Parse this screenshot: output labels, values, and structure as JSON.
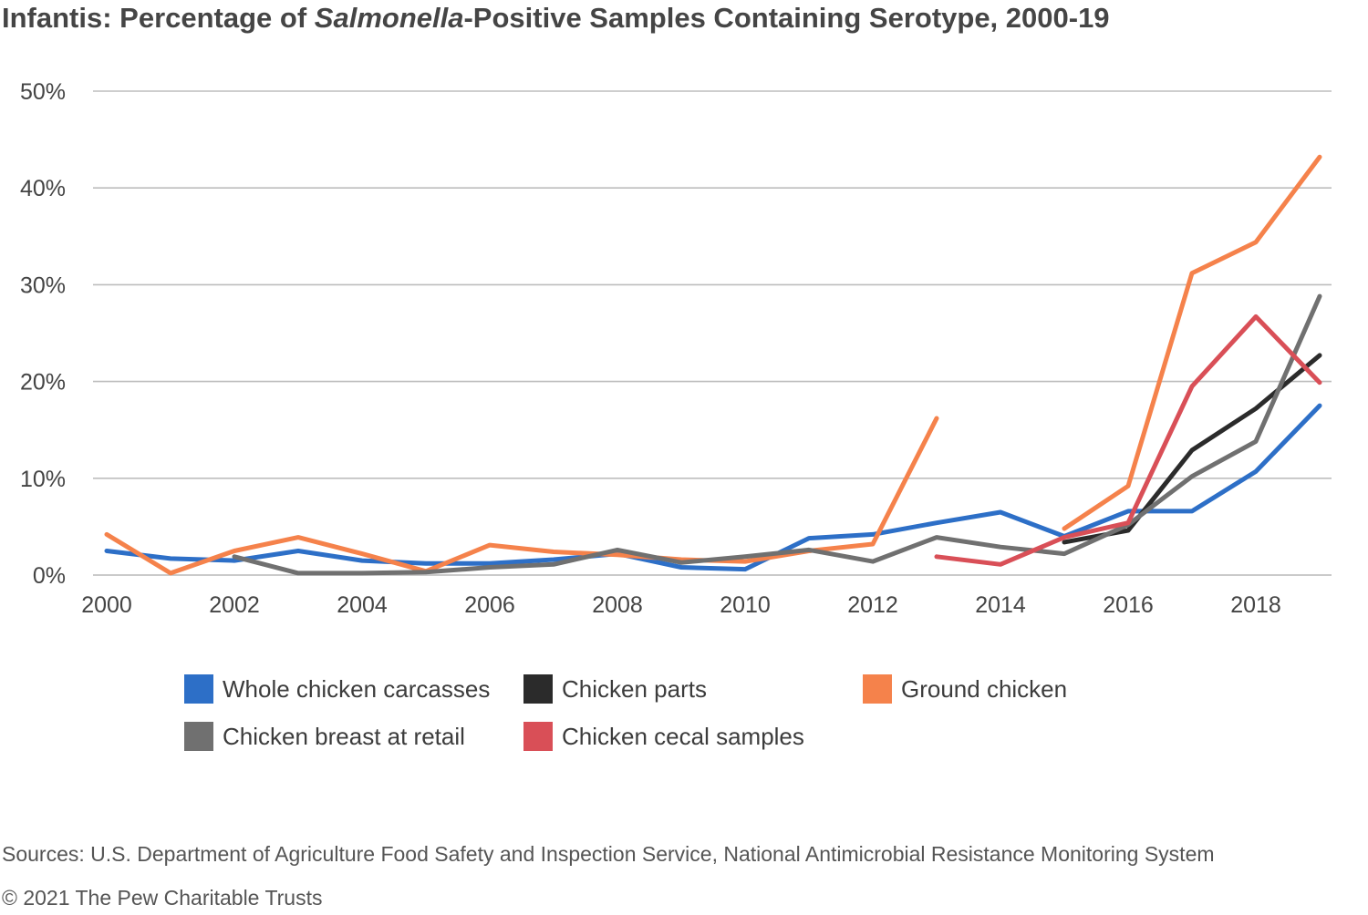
{
  "title": {
    "prefix": "Infantis: Percentage of ",
    "italic": "Salmonella",
    "suffix": "-Positive Samples Containing Serotype, 2000-19"
  },
  "footer": {
    "source": "Sources: U.S. Department of Agriculture Food Safety and Inspection Service, National Antimicrobial Resistance Monitoring System",
    "copyright": "© 2021 The Pew Charitable Trusts"
  },
  "chart_data": {
    "type": "line",
    "title": "Infantis: Percentage of Salmonella-Positive Samples Containing Serotype, 2000-19",
    "xlabel": "",
    "ylabel": "",
    "x": [
      2000,
      2001,
      2002,
      2003,
      2004,
      2005,
      2006,
      2007,
      2008,
      2009,
      2010,
      2011,
      2012,
      2013,
      2014,
      2015,
      2016,
      2017,
      2018,
      2019
    ],
    "xlim": [
      2000,
      2019
    ],
    "ylim": [
      0,
      50
    ],
    "x_ticks": [
      2000,
      2002,
      2004,
      2006,
      2008,
      2010,
      2012,
      2014,
      2016,
      2018
    ],
    "y_ticks": [
      0,
      10,
      20,
      30,
      40,
      50
    ],
    "y_tick_labels": [
      "0%",
      "10%",
      "20%",
      "30%",
      "40%",
      "50%"
    ],
    "grid": true,
    "legend_position": "bottom",
    "series": [
      {
        "name": "Whole chicken carcasses",
        "color": "#2d6fc7",
        "values": [
          2.5,
          1.7,
          1.5,
          2.5,
          1.5,
          1.2,
          1.2,
          1.6,
          2.2,
          0.8,
          0.6,
          3.8,
          4.2,
          5.4,
          6.5,
          4.0,
          6.6,
          6.6,
          10.7,
          17.5
        ]
      },
      {
        "name": "Chicken parts",
        "color": "#2b2b2b",
        "values": [
          null,
          null,
          null,
          null,
          null,
          null,
          null,
          null,
          null,
          null,
          null,
          null,
          null,
          null,
          null,
          3.4,
          4.6,
          12.9,
          17.2,
          22.7
        ]
      },
      {
        "name": "Ground chicken",
        "color": "#f5824b",
        "values": [
          4.2,
          0.2,
          2.5,
          3.9,
          2.2,
          0.4,
          3.1,
          2.4,
          2.1,
          1.6,
          1.4,
          2.5,
          3.2,
          16.2,
          null,
          4.8,
          9.2,
          31.2,
          34.4,
          43.2
        ]
      },
      {
        "name": "Chicken breast at retail",
        "color": "#707070",
        "values": [
          null,
          null,
          1.9,
          0.2,
          0.2,
          0.3,
          0.8,
          1.1,
          2.6,
          1.3,
          1.9,
          2.6,
          1.4,
          3.9,
          2.9,
          2.2,
          5.2,
          10.2,
          13.8,
          28.8
        ]
      },
      {
        "name": "Chicken cecal samples",
        "color": "#d94f57",
        "values": [
          null,
          null,
          null,
          null,
          null,
          null,
          null,
          null,
          null,
          null,
          null,
          null,
          null,
          1.9,
          1.1,
          3.9,
          5.4,
          19.5,
          26.7,
          19.9
        ]
      }
    ]
  }
}
